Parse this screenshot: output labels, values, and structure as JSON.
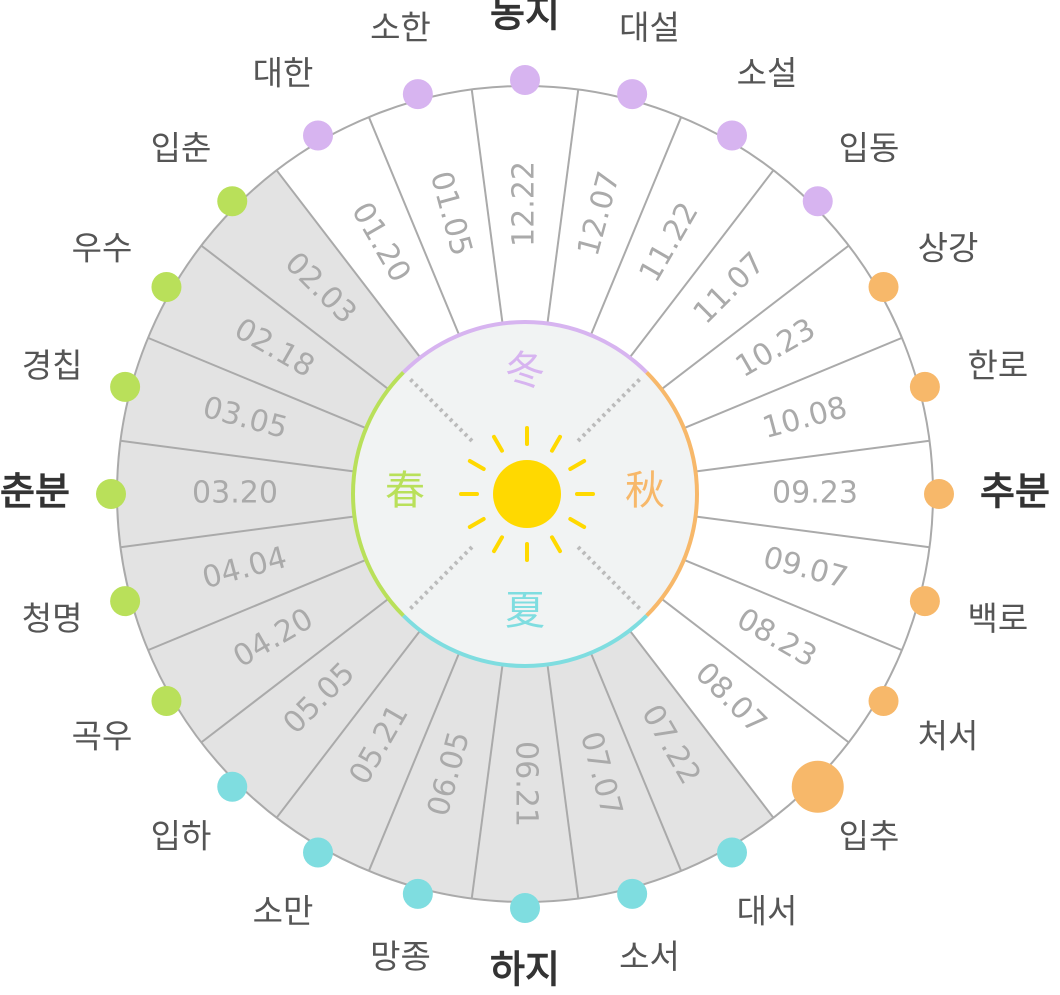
{
  "seasons": [
    {
      "label": "冬",
      "color": "#d7b4f0"
    },
    {
      "label": "秋",
      "color": "#f7b86a"
    },
    {
      "label": "夏",
      "color": "#7fdde0"
    },
    {
      "label": "春",
      "color": "#b9e05a"
    }
  ],
  "terms": [
    {
      "name": "동지",
      "date": "12.22",
      "color": "#d7b4f0",
      "major": true,
      "shaded": false
    },
    {
      "name": "대설",
      "date": "12.07",
      "color": "#d7b4f0",
      "major": false,
      "shaded": false
    },
    {
      "name": "소설",
      "date": "11.22",
      "color": "#d7b4f0",
      "major": false,
      "shaded": false
    },
    {
      "name": "입동",
      "date": "11.07",
      "color": "#d7b4f0",
      "major": false,
      "shaded": false
    },
    {
      "name": "상강",
      "date": "10.23",
      "color": "#f7b86a",
      "major": false,
      "shaded": false
    },
    {
      "name": "한로",
      "date": "10.08",
      "color": "#f7b86a",
      "major": false,
      "shaded": false
    },
    {
      "name": "추분",
      "date": "09.23",
      "color": "#f7b86a",
      "major": true,
      "shaded": false
    },
    {
      "name": "백로",
      "date": "09.07",
      "color": "#f7b86a",
      "major": false,
      "shaded": false
    },
    {
      "name": "처서",
      "date": "08.23",
      "color": "#f7b86a",
      "major": false,
      "shaded": false
    },
    {
      "name": "입추",
      "date": "08.07",
      "color": "#f7b86a",
      "major": false,
      "shaded": false,
      "highlight": true
    },
    {
      "name": "대서",
      "date": "07.22",
      "color": "#7fdde0",
      "major": false,
      "shaded": true
    },
    {
      "name": "소서",
      "date": "07.07",
      "color": "#7fdde0",
      "major": false,
      "shaded": true
    },
    {
      "name": "하지",
      "date": "06.21",
      "color": "#7fdde0",
      "major": true,
      "shaded": true
    },
    {
      "name": "망종",
      "date": "06.05",
      "color": "#7fdde0",
      "major": false,
      "shaded": true
    },
    {
      "name": "소만",
      "date": "05.21",
      "color": "#7fdde0",
      "major": false,
      "shaded": true
    },
    {
      "name": "입하",
      "date": "05.05",
      "color": "#7fdde0",
      "major": false,
      "shaded": true
    },
    {
      "name": "곡우",
      "date": "04.20",
      "color": "#b9e05a",
      "major": false,
      "shaded": true
    },
    {
      "name": "청명",
      "date": "04.04",
      "color": "#b9e05a",
      "major": false,
      "shaded": true
    },
    {
      "name": "춘분",
      "date": "03.20",
      "color": "#b9e05a",
      "major": true,
      "shaded": true
    },
    {
      "name": "경칩",
      "date": "03.05",
      "color": "#b9e05a",
      "major": false,
      "shaded": true
    },
    {
      "name": "우수",
      "date": "02.18",
      "color": "#b9e05a",
      "major": false,
      "shaded": true
    },
    {
      "name": "입춘",
      "date": "02.03",
      "color": "#b9e05a",
      "major": false,
      "shaded": true
    },
    {
      "name": "대한",
      "date": "01.20",
      "color": "#d7b4f0",
      "major": false,
      "shaded": false
    },
    {
      "name": "소한",
      "date": "01.05",
      "color": "#d7b4f0",
      "major": false,
      "shaded": false
    }
  ]
}
